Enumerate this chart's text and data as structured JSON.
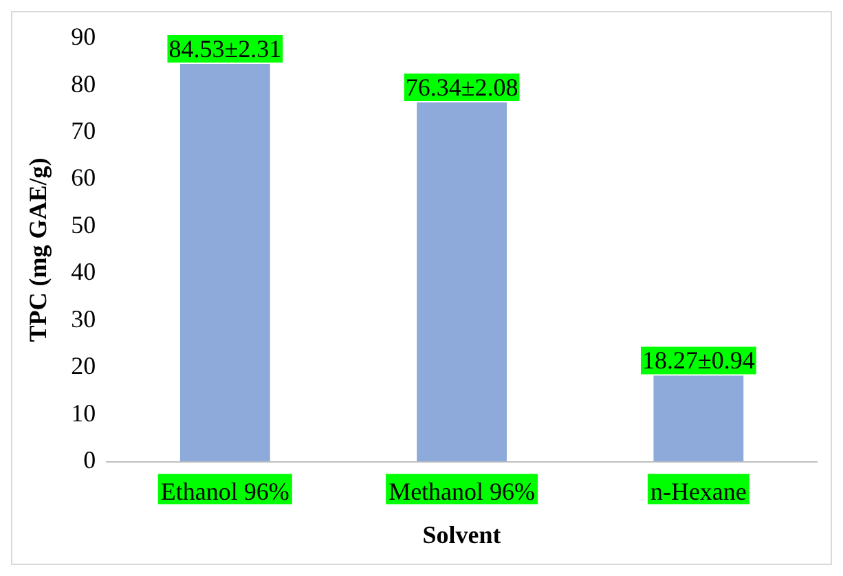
{
  "chart_data": {
    "type": "bar",
    "xlabel": "Solvent",
    "ylabel": "TPC (mg GAE/g)",
    "categories": [
      "Ethanol 96%",
      "Methanol 96%",
      "n-Hexane"
    ],
    "values": [
      84.53,
      76.34,
      18.27
    ],
    "value_labels": [
      "84.53±2.31",
      "76.34±2.08",
      "18.27±0.94"
    ],
    "color": "#8eaadb",
    "ylim": [
      0,
      90
    ],
    "yticks": [
      0,
      10,
      20,
      30,
      40,
      50,
      60,
      70,
      80,
      90
    ],
    "grid": false,
    "legend": false
  }
}
